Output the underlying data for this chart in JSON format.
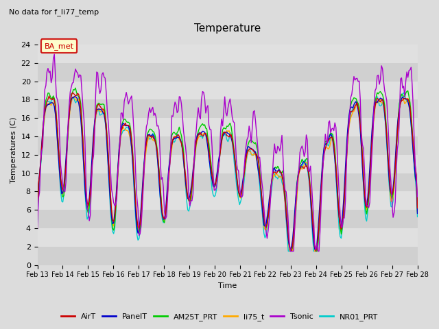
{
  "title": "Temperature",
  "subtitle": "No data for f_li77_temp",
  "ylabel": "Temperatures (C)",
  "xlabel": "Time",
  "ylim": [
    0,
    25
  ],
  "background_color": "#dcdcdc",
  "legend_label": "BA_met",
  "x_tick_labels": [
    "Feb 13",
    "Feb 14",
    "Feb 15",
    "Feb 16",
    "Feb 17",
    "Feb 18",
    "Feb 19",
    "Feb 20",
    "Feb 21",
    "Feb 22",
    "Feb 23",
    "Feb 24",
    "Feb 25",
    "Feb 26",
    "Feb 27",
    "Feb 28"
  ],
  "series": {
    "AirT": {
      "color": "#cc0000",
      "lw": 1.0
    },
    "PanelT": {
      "color": "#0000cc",
      "lw": 1.0
    },
    "AM25T_PRT": {
      "color": "#00cc00",
      "lw": 1.0
    },
    "li75_t": {
      "color": "#ffaa00",
      "lw": 1.0
    },
    "Tsonic": {
      "color": "#aa00cc",
      "lw": 1.0
    },
    "NR01_PRT": {
      "color": "#00cccc",
      "lw": 1.0
    }
  }
}
